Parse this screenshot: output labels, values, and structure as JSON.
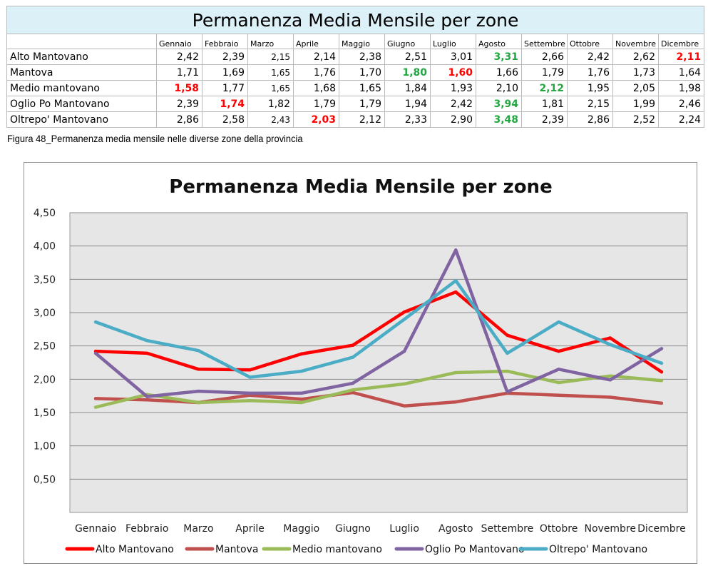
{
  "table": {
    "title": "Permanenza Media Mensile per zone",
    "months": [
      "Gennaio",
      "Febbraio",
      "Marzo",
      "Aprile",
      "Maggio",
      "Giugno",
      "Luglio",
      "Agosto",
      "Settembre",
      "Ottobre",
      "Novembre",
      "Dicembre"
    ],
    "rows": [
      {
        "zone": "Alto Mantovano",
        "values": [
          "2,42",
          "2,39",
          "2,15",
          "2,14",
          "2,38",
          "2,51",
          "3,01",
          "3,31",
          "2,66",
          "2,42",
          "2,62",
          "2,11"
        ],
        "styles": [
          "",
          "",
          "small",
          "",
          "",
          "",
          "",
          "green",
          "",
          "",
          "",
          "red"
        ]
      },
      {
        "zone": "Mantova",
        "values": [
          "1,71",
          "1,69",
          "1,65",
          "1,76",
          "1,70",
          "1,80",
          "1,60",
          "1,66",
          "1,79",
          "1,76",
          "1,73",
          "1,64"
        ],
        "styles": [
          "",
          "",
          "small",
          "",
          "",
          "green",
          "red",
          "",
          "",
          "",
          "",
          ""
        ]
      },
      {
        "zone": "Medio mantovano",
        "values": [
          "1,58",
          "1,77",
          "1,65",
          "1,68",
          "1,65",
          "1,84",
          "1,93",
          "2,10",
          "2,12",
          "1,95",
          "2,05",
          "1,98"
        ],
        "styles": [
          "red",
          "",
          "small",
          "",
          "",
          "",
          "",
          "",
          "green",
          "",
          "",
          ""
        ]
      },
      {
        "zone": "Oglio Po Mantovano",
        "values": [
          "2,39",
          "1,74",
          "1,82",
          "1,79",
          "1,79",
          "1,94",
          "2,42",
          "3,94",
          "1,81",
          "2,15",
          "1,99",
          "2,46"
        ],
        "styles": [
          "",
          "red",
          "",
          "",
          "",
          "",
          "",
          "green",
          "",
          "",
          "",
          ""
        ]
      },
      {
        "zone": "Oltrepo' Mantovano",
        "values": [
          "2,86",
          "2,58",
          "2,43",
          "2,03",
          "2,12",
          "2,33",
          "2,90",
          "3,48",
          "2,39",
          "2,86",
          "2,52",
          "2,24"
        ],
        "styles": [
          "",
          "",
          "small",
          "red",
          "",
          "",
          "",
          "green",
          "",
          "",
          "",
          ""
        ]
      }
    ]
  },
  "caption": "Figura 48_Permanenza media mensile nelle diverse zone della provincia",
  "chart_data": {
    "type": "line",
    "title": "Permanenza Media Mensile per zone",
    "categories": [
      "Gennaio",
      "Febbraio",
      "Marzo",
      "Aprile",
      "Maggio",
      "Giugno",
      "Luglio",
      "Agosto",
      "Settembre",
      "Ottobre",
      "Novembre",
      "Dicembre"
    ],
    "ylim": [
      0,
      4.5
    ],
    "yticks": [
      "0,50",
      "1,00",
      "1,50",
      "2,00",
      "2,50",
      "3,00",
      "3,50",
      "4,00",
      "4,50"
    ],
    "ytick_values": [
      0.5,
      1,
      1.5,
      2,
      2.5,
      3,
      3.5,
      4,
      4.5
    ],
    "grid": true,
    "legend_position": "bottom",
    "plot_background": "#e6e6e6",
    "series": [
      {
        "name": "Alto Mantovano",
        "color": "#ff0000",
        "values": [
          2.42,
          2.39,
          2.15,
          2.14,
          2.38,
          2.51,
          3.01,
          3.31,
          2.66,
          2.42,
          2.62,
          2.11
        ]
      },
      {
        "name": "Mantova",
        "color": "#c0504d",
        "values": [
          1.71,
          1.69,
          1.65,
          1.76,
          1.7,
          1.8,
          1.6,
          1.66,
          1.79,
          1.76,
          1.73,
          1.64
        ]
      },
      {
        "name": "Medio mantovano",
        "color": "#9bbb59",
        "values": [
          1.58,
          1.77,
          1.65,
          1.68,
          1.65,
          1.84,
          1.93,
          2.1,
          2.12,
          1.95,
          2.05,
          1.98
        ]
      },
      {
        "name": "Oglio Po Mantovano",
        "color": "#8064a2",
        "values": [
          2.39,
          1.74,
          1.82,
          1.79,
          1.79,
          1.94,
          2.42,
          3.94,
          1.81,
          2.15,
          1.99,
          2.46
        ]
      },
      {
        "name": "Oltrepo' Mantovano",
        "color": "#4bacc6",
        "values": [
          2.86,
          2.58,
          2.43,
          2.03,
          2.12,
          2.33,
          2.9,
          3.48,
          2.39,
          2.86,
          2.52,
          2.24
        ]
      }
    ]
  }
}
